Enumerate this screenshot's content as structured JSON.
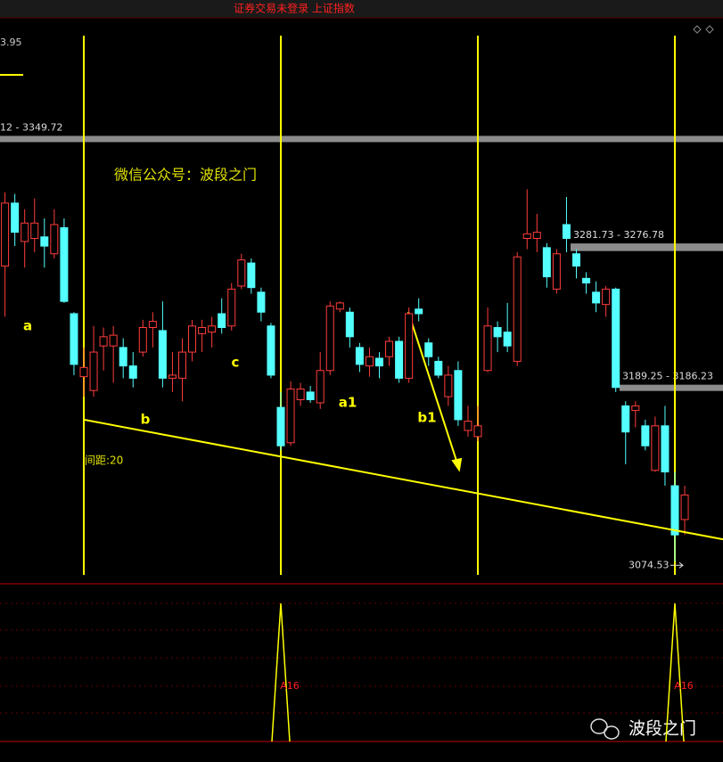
{
  "chart_data": {
    "type": "candlestick",
    "title": "证券交易未登录 上证指数",
    "watermark": "微信公众号：波段之门",
    "brand": "波段之门",
    "corner_label": "3.95",
    "ylim": [
      3066,
      3417
    ],
    "up_color": "#ff3c3c",
    "down_color": "#54ffff",
    "candles": [
      [
        3267,
        3315,
        3234,
        3308
      ],
      [
        3308,
        3314,
        3280,
        3289
      ],
      [
        3283,
        3304,
        3266,
        3295
      ],
      [
        3285,
        3311,
        3276,
        3295
      ],
      [
        3286,
        3298,
        3266,
        3280
      ],
      [
        3275,
        3304,
        3272,
        3294
      ],
      [
        3292,
        3298,
        3243,
        3244
      ],
      [
        3236,
        3237,
        3196,
        3203
      ],
      [
        3195,
        3214,
        3182,
        3201
      ],
      [
        3186,
        3228,
        3182,
        3211
      ],
      [
        3215,
        3227,
        3199,
        3221
      ],
      [
        3215,
        3228,
        3191,
        3222
      ],
      [
        3214,
        3220,
        3194,
        3202
      ],
      [
        3202,
        3211,
        3188,
        3194
      ],
      [
        3211,
        3232,
        3208,
        3227
      ],
      [
        3227,
        3237,
        3214,
        3231
      ],
      [
        3225,
        3244,
        3188,
        3194
      ],
      [
        3194,
        3211,
        3185,
        3196
      ],
      [
        3194,
        3220,
        3179,
        3211
      ],
      [
        3211,
        3232,
        3205,
        3228
      ],
      [
        3223,
        3232,
        3211,
        3227
      ],
      [
        3224,
        3234,
        3214,
        3228
      ],
      [
        3236,
        3246,
        3223,
        3227
      ],
      [
        3228,
        3256,
        3225,
        3252
      ],
      [
        3254,
        3275,
        3252,
        3271
      ],
      [
        3269,
        3272,
        3249,
        3253
      ],
      [
        3250,
        3253,
        3231,
        3237
      ],
      [
        3228,
        3230,
        3194,
        3196
      ],
      [
        3175,
        3185,
        3147,
        3150
      ],
      [
        3152,
        3192,
        3150,
        3187
      ],
      [
        3180,
        3191,
        3176,
        3187
      ],
      [
        3185,
        3189,
        3178,
        3180
      ],
      [
        3178,
        3211,
        3174,
        3199
      ],
      [
        3199,
        3244,
        3196,
        3241
      ],
      [
        3239,
        3244,
        3237,
        3243
      ],
      [
        3237,
        3240,
        3214,
        3221
      ],
      [
        3214,
        3217,
        3198,
        3203
      ],
      [
        3202,
        3214,
        3195,
        3208
      ],
      [
        3207,
        3211,
        3194,
        3202
      ],
      [
        3208,
        3221,
        3202,
        3218
      ],
      [
        3218,
        3221,
        3191,
        3194
      ],
      [
        3194,
        3240,
        3191,
        3236
      ],
      [
        3239,
        3246,
        3231,
        3236
      ],
      [
        3217,
        3220,
        3202,
        3208
      ],
      [
        3205,
        3208,
        3194,
        3196
      ],
      [
        3182,
        3202,
        3176,
        3196
      ],
      [
        3199,
        3205,
        3163,
        3167
      ],
      [
        3160,
        3176,
        3156,
        3166
      ],
      [
        3156,
        3176,
        3153,
        3163
      ],
      [
        3199,
        3240,
        3198,
        3228
      ],
      [
        3227,
        3231,
        3211,
        3221
      ],
      [
        3224,
        3243,
        3211,
        3215
      ],
      [
        3205,
        3276,
        3202,
        3273
      ],
      [
        3285,
        3317,
        3278,
        3288
      ],
      [
        3285,
        3301,
        3276,
        3289
      ],
      [
        3279,
        3282,
        3253,
        3260
      ],
      [
        3252,
        3278,
        3249,
        3275
      ],
      [
        3294,
        3312,
        3276,
        3285
      ],
      [
        3275,
        3278,
        3259,
        3267
      ],
      [
        3259,
        3263,
        3249,
        3256
      ],
      [
        3250,
        3257,
        3237,
        3243
      ],
      [
        3242,
        3254,
        3234,
        3252
      ],
      [
        3252,
        3253,
        3185,
        3188
      ],
      [
        3176,
        3179,
        3138,
        3159
      ],
      [
        3173,
        3179,
        3162,
        3176
      ],
      [
        3163,
        3167,
        3147,
        3150
      ],
      [
        3134,
        3169,
        3133,
        3163
      ],
      [
        3163,
        3176,
        3124,
        3133
      ],
      [
        3124,
        3133,
        3074.53,
        3092
      ],
      [
        3102,
        3124,
        3092,
        3118
      ]
    ],
    "bands": [
      {
        "label": "12 - 3349.72",
        "high": 3349.72,
        "low": 3349.72
      },
      {
        "label": "3281.73 - 3276.78",
        "high": 3281.73,
        "low": 3276.78
      },
      {
        "label": "3189.25 - 3186.23",
        "high": 3189.25,
        "low": 3186.23
      }
    ],
    "low_label": {
      "value": 3074.53,
      "label": "3074.53"
    },
    "cycle_lines": [
      8,
      28,
      48,
      68
    ],
    "cycle_label": "间距:20",
    "trendline": {
      "start": [
        8,
        3167
      ],
      "end": [
        68,
        3095
      ]
    },
    "wave_labels": [
      {
        "text": "a",
        "index": 2
      },
      {
        "text": "b",
        "index": 14
      },
      {
        "text": "c",
        "index": 23
      },
      {
        "text": "a1",
        "index": 35
      },
      {
        "text": "b1",
        "index": 43
      }
    ],
    "signals": [
      {
        "index": 28,
        "label": "A16"
      },
      {
        "index": 68,
        "label": "A16"
      }
    ]
  }
}
